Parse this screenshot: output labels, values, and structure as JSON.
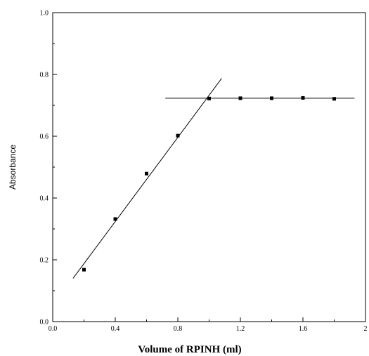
{
  "chart_data": {
    "type": "scatter",
    "title": "",
    "xlabel": "Volume of RPINH (ml)",
    "ylabel": "Absorbance",
    "xlim": [
      0,
      2
    ],
    "ylim": [
      0,
      1
    ],
    "x_ticks": [
      "0.0",
      "0.4",
      "0.8",
      "1.2",
      "1.6",
      "2"
    ],
    "y_ticks": [
      "0.0",
      "0.2",
      "0.4",
      "0.6",
      "0.8",
      "1.0"
    ],
    "grid": false,
    "legend": "none",
    "series": [
      {
        "x": [
          0.2,
          0.4,
          0.6,
          0.8,
          1.0,
          1.2,
          1.4,
          1.6,
          1.8
        ],
        "y": [
          0.168,
          0.332,
          0.479,
          0.602,
          0.722,
          0.723,
          0.723,
          0.724,
          0.721
        ]
      }
    ],
    "fit_lines": [
      {
        "x": [
          0.13,
          1.08
        ],
        "y": [
          0.14,
          0.787
        ]
      },
      {
        "x": [
          0.72,
          1.93
        ],
        "y": [
          0.723,
          0.723
        ]
      }
    ],
    "colors": {
      "axis": "#000000",
      "marker": "#000000",
      "line": "#000000"
    }
  }
}
